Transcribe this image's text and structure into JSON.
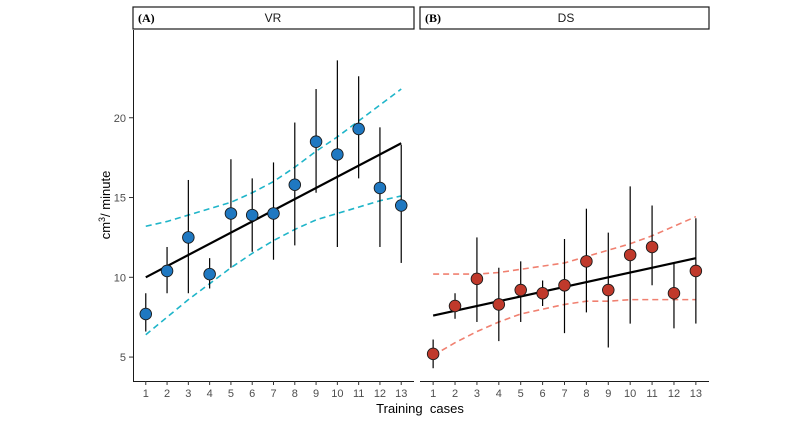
{
  "chart_data": {
    "type": "scatter",
    "xlabel": "Training  cases",
    "ylabel_base": "cm",
    "ylabel_sup": "3",
    "ylabel_rest": "/ minute",
    "x_ticks": [
      1,
      2,
      3,
      4,
      5,
      6,
      7,
      8,
      9,
      10,
      11,
      12,
      13
    ],
    "y_ticks": [
      5,
      10,
      15,
      20
    ],
    "ylim": [
      3.5,
      25.5
    ],
    "xlim": [
      0.4,
      13.6
    ],
    "panels": [
      {
        "tag": "(A)",
        "title": "VR",
        "point_color": "#1f78c1",
        "ci_color": "#1fb5c9",
        "x": [
          1,
          2,
          3,
          4,
          5,
          6,
          7,
          8,
          9,
          10,
          11,
          12,
          13
        ],
        "means": [
          7.7,
          10.4,
          12.5,
          10.2,
          14.0,
          13.9,
          14.0,
          15.8,
          18.5,
          17.7,
          19.3,
          15.6,
          14.5
        ],
        "err_low": [
          6.6,
          9.0,
          9.0,
          9.3,
          10.6,
          11.6,
          11.1,
          12.0,
          15.3,
          11.9,
          16.2,
          11.9,
          10.9
        ],
        "err_high": [
          9.0,
          11.9,
          16.1,
          11.2,
          17.4,
          16.2,
          17.2,
          19.7,
          21.8,
          23.6,
          22.6,
          19.4,
          18.3
        ],
        "trend": {
          "start": 10.0,
          "end": 18.4
        },
        "ci_lower": [
          6.4,
          7.5,
          8.6,
          9.6,
          10.6,
          11.5,
          12.3,
          13.0,
          13.6,
          14.0,
          14.4,
          14.8,
          15.1
        ],
        "ci_upper": [
          13.2,
          13.5,
          13.9,
          14.3,
          14.7,
          15.3,
          16.0,
          16.9,
          17.9,
          18.8,
          19.8,
          20.8,
          21.8
        ]
      },
      {
        "tag": "(B)",
        "title": "DS",
        "point_color": "#c0392b",
        "ci_color": "#f08070",
        "x": [
          1,
          2,
          3,
          4,
          5,
          6,
          7,
          8,
          9,
          10,
          11,
          12,
          13
        ],
        "means": [
          5.2,
          8.2,
          9.9,
          8.3,
          9.2,
          9.0,
          9.5,
          11.0,
          9.2,
          11.4,
          11.9,
          9.0,
          10.4
        ],
        "err_low": [
          4.3,
          7.4,
          7.2,
          6.0,
          7.2,
          8.2,
          6.5,
          7.8,
          5.6,
          7.1,
          9.5,
          6.8,
          7.1
        ],
        "err_high": [
          6.1,
          9.0,
          12.5,
          10.6,
          11.0,
          9.8,
          12.4,
          14.3,
          12.8,
          15.7,
          14.5,
          10.9,
          13.7
        ],
        "trend": {
          "start": 7.6,
          "end": 11.2
        },
        "ci_lower": [
          5.1,
          5.9,
          6.6,
          7.2,
          7.7,
          8.0,
          8.3,
          8.5,
          8.5,
          8.6,
          8.6,
          8.6,
          8.6
        ],
        "ci_upper": [
          10.2,
          10.2,
          10.2,
          10.3,
          10.5,
          10.7,
          10.9,
          11.3,
          11.7,
          12.1,
          12.6,
          13.2,
          13.8
        ]
      }
    ]
  }
}
